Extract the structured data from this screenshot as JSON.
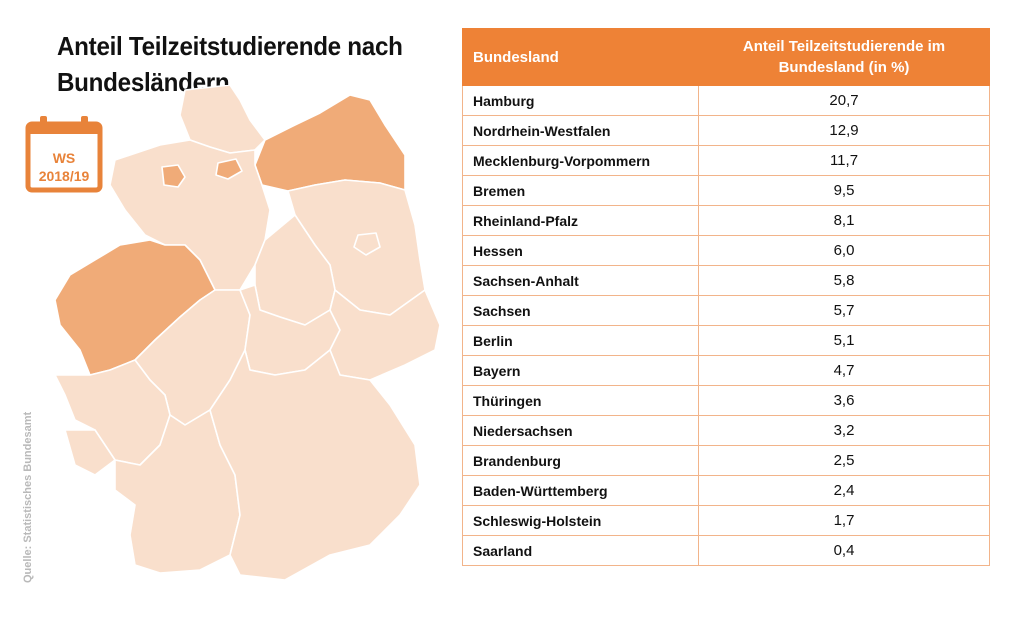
{
  "title": {
    "line1": "Anteil Teilzeitstudierende nach",
    "line2": "Bundesländern"
  },
  "badge": {
    "line1": "WS",
    "line2": "2018/19",
    "icon": "calendar-icon",
    "color": "#e8833a"
  },
  "source": "Quelle: Statistisches Bundesamt",
  "table": {
    "header": {
      "col1": "Bundesland",
      "col2": "Anteil Teilzeitstudierende im Bundesland (in %)"
    },
    "rows": [
      {
        "name": "Hamburg",
        "value": "20,7"
      },
      {
        "name": "Nordrhein-Westfalen",
        "value": "12,9"
      },
      {
        "name": "Mecklenburg-Vorpommern",
        "value": "11,7"
      },
      {
        "name": "Bremen",
        "value": "9,5"
      },
      {
        "name": "Rheinland-Pfalz",
        "value": "8,1"
      },
      {
        "name": "Hessen",
        "value": "6,0"
      },
      {
        "name": "Sachsen-Anhalt",
        "value": "5,8"
      },
      {
        "name": "Sachsen",
        "value": "5,7"
      },
      {
        "name": "Berlin",
        "value": "5,1"
      },
      {
        "name": "Bayern",
        "value": "4,7"
      },
      {
        "name": "Thüringen",
        "value": "3,6"
      },
      {
        "name": "Niedersachsen",
        "value": "3,2"
      },
      {
        "name": "Brandenburg",
        "value": "2,5"
      },
      {
        "name": "Baden-Württemberg",
        "value": "2,4"
      },
      {
        "name": "Schleswig-Holstein",
        "value": "1,7"
      },
      {
        "name": "Saarland",
        "value": "0,4"
      }
    ]
  },
  "map": {
    "highlighted_states": [
      "Hamburg",
      "Nordrhein-Westfalen",
      "Mecklenburg-Vorpommern",
      "Bremen"
    ],
    "colors": {
      "base": "#f9dfcc",
      "highlight": "#f0ab78",
      "border": "#ffffff",
      "header": "#ee8236",
      "row_border": "#f2b48a"
    }
  }
}
